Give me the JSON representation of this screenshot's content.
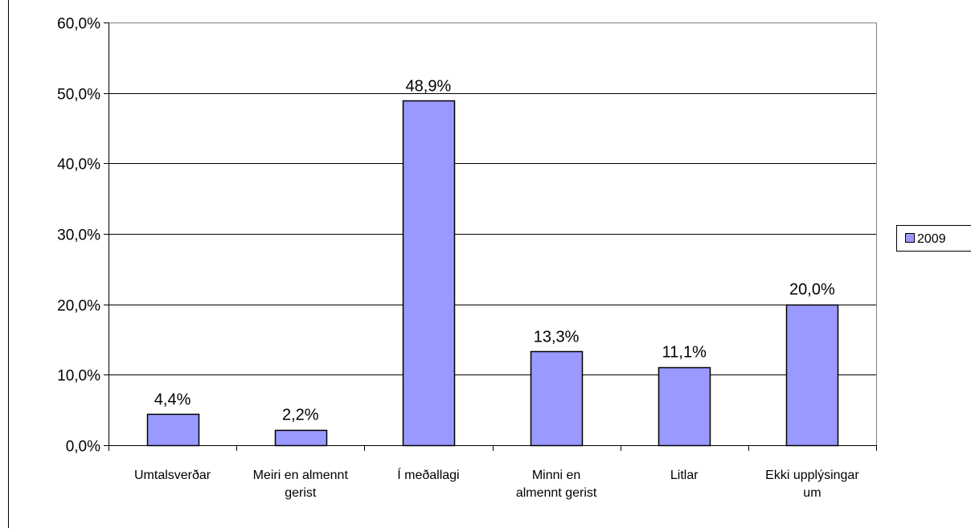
{
  "chart_data": {
    "type": "bar",
    "categories": [
      [
        "Umtalsverðar"
      ],
      [
        "Meiri en almennt",
        "gerist"
      ],
      [
        "Í meðallagi"
      ],
      [
        "Minni en",
        "almennt gerist"
      ],
      [
        "Litlar"
      ],
      [
        "Ekki upplýsingar",
        "um"
      ]
    ],
    "series": [
      {
        "name": "2009",
        "values": [
          4.4,
          2.2,
          48.9,
          13.3,
          11.1,
          20.0
        ],
        "labels": [
          "4,4%",
          "2,2%",
          "48,9%",
          "13,3%",
          "11,1%",
          "20,0%"
        ]
      }
    ],
    "yticks": [
      "0,0%",
      "10,0%",
      "20,0%",
      "30,0%",
      "40,0%",
      "50,0%",
      "60,0%"
    ],
    "ylim": [
      0,
      60
    ],
    "grid": true,
    "legend": "right",
    "colors": {
      "bar_fill": "#9999ff",
      "bar_stroke": "#000000",
      "gridline": "#000000",
      "plot_border": "#808080",
      "background": "#ffffff"
    }
  }
}
